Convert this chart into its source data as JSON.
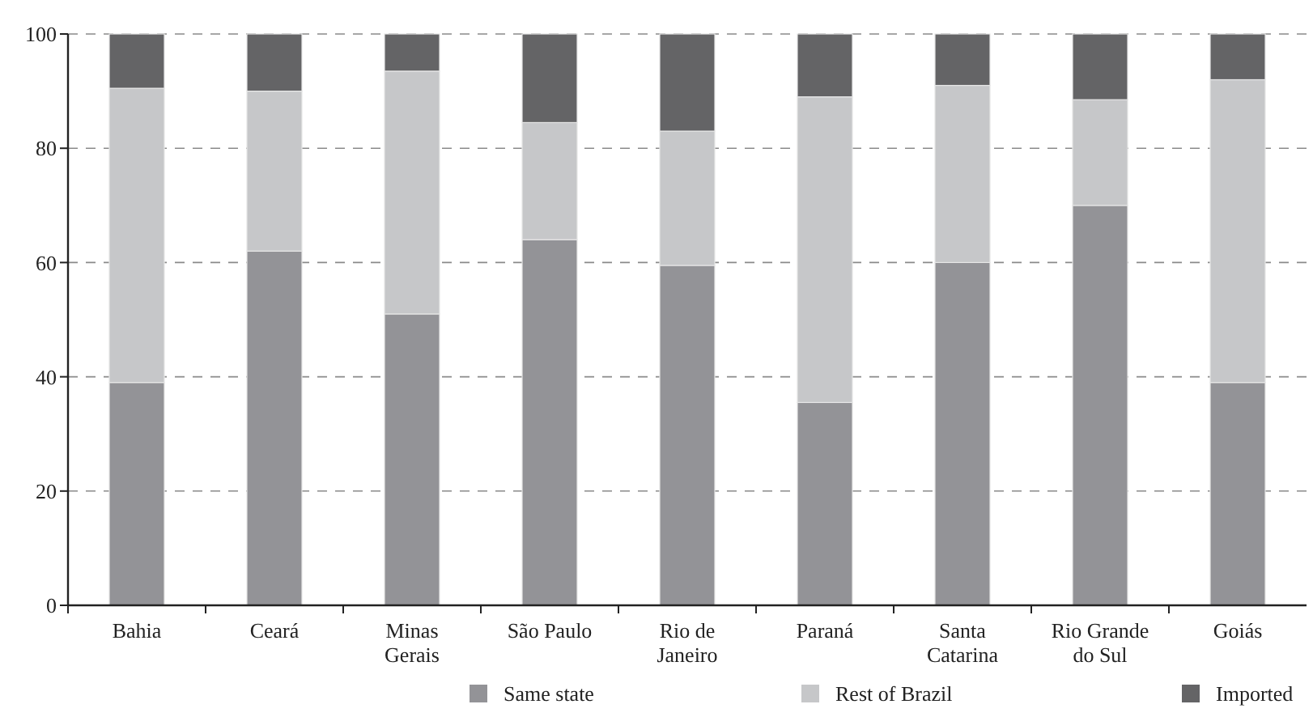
{
  "chart_data": {
    "type": "bar",
    "stacked": true,
    "categories": [
      "Bahia",
      "Ceará",
      "Minas Gerais",
      "São Paulo",
      "Rio de Janeiro",
      "Paraná",
      "Santa Catarina",
      "Rio Grande do Sul",
      "Goiás"
    ],
    "series": [
      {
        "name": "Same state",
        "color": "#939397",
        "values": [
          39,
          62,
          51,
          64,
          59.5,
          35.5,
          60,
          70,
          39
        ]
      },
      {
        "name": "Rest of Brazil",
        "color": "#c6c7c9",
        "values": [
          51.5,
          28,
          42.5,
          20.5,
          23.5,
          53.5,
          31,
          18.5,
          53
        ]
      },
      {
        "name": "Imported",
        "color": "#646466",
        "values": [
          9.5,
          10,
          6.5,
          15.5,
          17,
          11,
          9,
          11.5,
          8
        ]
      }
    ],
    "ylim": [
      0,
      100
    ],
    "yticks": [
      0,
      20,
      40,
      60,
      80,
      100
    ],
    "grid": "y",
    "legend": "bottom"
  }
}
